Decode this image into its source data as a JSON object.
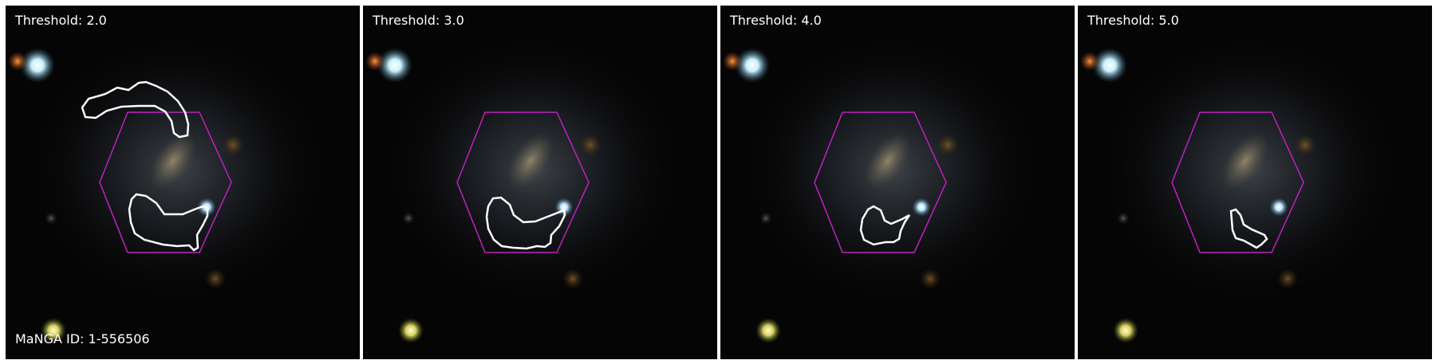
{
  "panels": [
    {
      "threshold_label": "Threshold: 2.0",
      "show_id": true
    },
    {
      "threshold_label": "Threshold: 3.0",
      "show_id": false
    },
    {
      "threshold_label": "Threshold: 4.0",
      "show_id": false
    },
    {
      "threshold_label": "Threshold: 5.0",
      "show_id": false
    }
  ],
  "manga_id_label": "MaNGA ID: 1-556506",
  "colors": {
    "hexagon": "#c020c0",
    "contour": "#ffffff",
    "background": "#050404"
  }
}
